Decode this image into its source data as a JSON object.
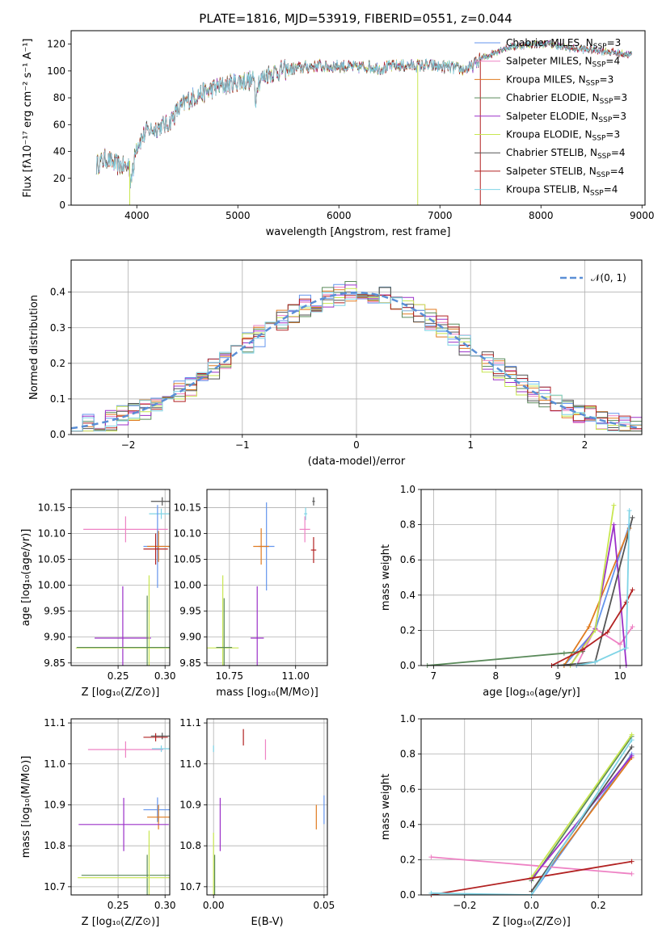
{
  "title": "PLATE=1816, MJD=53919, FIBERID=0551, z=0.044",
  "colors": {
    "Chabrier MILES": "#6495ed",
    "Salpeter MILES": "#ee82c4",
    "Kroupa MILES": "#e07b20",
    "Chabrier ELODIE": "#5a8a5a",
    "Salpeter ELODIE": "#9b30c8",
    "Kroupa ELODIE": "#c8e650",
    "Chabrier STELIB": "#555555",
    "Salpeter STELIB": "#b22222",
    "Kroupa STELIB": "#7fd4e6"
  },
  "legend": [
    {
      "label": "Chabrier MILES, N",
      "sub": "SSP",
      "eq": "=3",
      "key": "Chabrier MILES"
    },
    {
      "label": "Salpeter MILES, N",
      "sub": "SSP",
      "eq": "=4",
      "key": "Salpeter MILES"
    },
    {
      "label": "Kroupa MILES, N",
      "sub": "SSP",
      "eq": "=3",
      "key": "Kroupa MILES"
    },
    {
      "label": "Chabrier ELODIE, N",
      "sub": "SSP",
      "eq": "=3",
      "key": "Chabrier ELODIE"
    },
    {
      "label": "Salpeter ELODIE, N",
      "sub": "SSP",
      "eq": "=3",
      "key": "Salpeter ELODIE"
    },
    {
      "label": "Kroupa ELODIE, N",
      "sub": "SSP",
      "eq": "=3",
      "key": "Kroupa ELODIE"
    },
    {
      "label": "Chabrier STELIB, N",
      "sub": "SSP",
      "eq": "=4",
      "key": "Chabrier STELIB"
    },
    {
      "label": "Salpeter STELIB, N",
      "sub": "SSP",
      "eq": "=4",
      "key": "Salpeter STELIB"
    },
    {
      "label": "Kroupa STELIB, N",
      "sub": "SSP",
      "eq": "=4",
      "key": "Kroupa STELIB"
    }
  ],
  "chart_data": [
    {
      "id": "spectrum",
      "type": "line",
      "xlabel": "wavelength [Angstrom, rest frame]",
      "ylabel": "Flux [fλ10⁻¹⁷ erg cm⁻² s⁻¹ A⁻¹]",
      "xlim": [
        3350,
        9030
      ],
      "ylim": [
        0,
        130
      ],
      "xticks": [
        4000,
        5000,
        6000,
        7000,
        8000,
        9000
      ],
      "yticks": [
        0,
        20,
        40,
        60,
        80,
        100,
        120
      ],
      "continuum": [
        [
          3600,
          30
        ],
        [
          3700,
          35
        ],
        [
          3800,
          30
        ],
        [
          3900,
          28
        ],
        [
          4000,
          45
        ],
        [
          4100,
          55
        ],
        [
          4200,
          58
        ],
        [
          4300,
          60
        ],
        [
          4400,
          70
        ],
        [
          4500,
          78
        ],
        [
          4600,
          82
        ],
        [
          4700,
          85
        ],
        [
          4800,
          88
        ],
        [
          4900,
          90
        ],
        [
          5000,
          92
        ],
        [
          5100,
          93
        ],
        [
          5200,
          92
        ],
        [
          5300,
          98
        ],
        [
          5400,
          100
        ],
        [
          5500,
          101
        ],
        [
          5600,
          102
        ],
        [
          5700,
          103
        ],
        [
          5800,
          104
        ],
        [
          5900,
          103
        ],
        [
          6000,
          104
        ],
        [
          6100,
          103
        ],
        [
          6200,
          103
        ],
        [
          6300,
          103
        ],
        [
          6400,
          102
        ],
        [
          6500,
          103
        ],
        [
          6600,
          104
        ],
        [
          6700,
          104
        ],
        [
          6800,
          104
        ],
        [
          6900,
          104
        ],
        [
          7000,
          103
        ],
        [
          7100,
          103
        ],
        [
          7200,
          101
        ],
        [
          7300,
          102
        ],
        [
          7400,
          109
        ],
        [
          7500,
          112
        ],
        [
          7600,
          116
        ],
        [
          7700,
          118
        ],
        [
          7800,
          119
        ],
        [
          7900,
          120
        ],
        [
          8000,
          120
        ],
        [
          8100,
          120
        ],
        [
          8200,
          118
        ],
        [
          8300,
          117
        ],
        [
          8400,
          116
        ],
        [
          8500,
          116
        ],
        [
          8600,
          115
        ],
        [
          8700,
          114
        ],
        [
          8800,
          113
        ],
        [
          8900,
          112
        ]
      ],
      "features": [
        {
          "series": "Kroupa ELODIE",
          "x": 3930,
          "ymin": 0
        },
        {
          "series": "Kroupa ELODIE",
          "x": 6780,
          "ymin": 0
        },
        {
          "series": "Salpeter STELIB",
          "x": 7400,
          "ymin": 0
        }
      ]
    },
    {
      "id": "residuals",
      "type": "step",
      "xlabel": "(data-model)/error",
      "ylabel": "Normed distribution",
      "xlim": [
        -2.5,
        2.5
      ],
      "ylim": [
        0,
        0.49
      ],
      "xticks": [
        -2,
        -1,
        0,
        1,
        2
      ],
      "yticks": [
        0.0,
        0.1,
        0.2,
        0.3,
        0.4
      ],
      "legend_label": "𝒩(0, 1)",
      "gaussian": {
        "mu": 0,
        "sigma": 1
      },
      "bin_width": 0.1
    },
    {
      "id": "age-Z",
      "type": "errorbar",
      "xlabel": "Z [log₁₀(Z/Z⊙)]",
      "ylabel": "age  [log₁₀(age/yr)]",
      "xlim": [
        0.2,
        0.305
      ],
      "ylim": [
        9.845,
        10.185
      ],
      "xticks": [
        0.25,
        0.3
      ],
      "yticks": [
        9.85,
        9.9,
        9.95,
        10.0,
        10.05,
        10.1,
        10.15
      ],
      "points": [
        {
          "series": "Chabrier STELIB",
          "x": 0.297,
          "y": 10.162,
          "xerr": 0.012,
          "yerr": 0.008
        },
        {
          "series": "Kroupa STELIB",
          "x": 0.296,
          "y": 10.138,
          "xerr": 0.013,
          "yerr": 0.01
        },
        {
          "series": "Salpeter MILES",
          "x": 0.258,
          "y": 10.108,
          "xerr": 0.045,
          "yerr": 0.025
        },
        {
          "series": "Chabrier MILES",
          "x": 0.292,
          "y": 10.075,
          "xerr": 0.015,
          "yerr": 0.08
        },
        {
          "series": "Kroupa MILES",
          "x": 0.293,
          "y": 10.075,
          "xerr": 0.012,
          "yerr": 0.03
        },
        {
          "series": "Salpeter STELIB",
          "x": 0.29,
          "y": 10.07,
          "xerr": 0.013,
          "yerr": 0.03
        },
        {
          "series": "Salpeter ELODIE",
          "x": 0.255,
          "y": 9.898,
          "xerr": 0.03,
          "yerr": 0.1
        },
        {
          "series": "Kroupa ELODIE",
          "x": 0.283,
          "y": 9.879,
          "xerr": 0.078,
          "yerr": 0.14
        },
        {
          "series": "Chabrier ELODIE",
          "x": 0.281,
          "y": 9.88,
          "xerr": 0.075,
          "yerr": 0.1
        }
      ]
    },
    {
      "id": "age-mass",
      "type": "errorbar",
      "xlabel": "mass [log₁₀(M/M⊙)]",
      "ylabel": "",
      "xlim": [
        10.665,
        11.12
      ],
      "ylim": [
        9.845,
        10.185
      ],
      "xticks": [
        10.75,
        11.0
      ],
      "yticks": [
        9.85,
        9.9,
        9.95,
        10.0,
        10.05,
        10.1,
        10.15
      ],
      "points": [
        {
          "series": "Chabrier STELIB",
          "x": 11.068,
          "y": 10.162,
          "xerr": 0.005,
          "yerr": 0.008
        },
        {
          "series": "Kroupa STELIB",
          "x": 11.038,
          "y": 10.138,
          "xerr": 0.006,
          "yerr": 0.012
        },
        {
          "series": "Salpeter MILES",
          "x": 11.035,
          "y": 10.108,
          "xerr": 0.02,
          "yerr": 0.025
        },
        {
          "series": "Salpeter STELIB",
          "x": 11.068,
          "y": 10.068,
          "xerr": 0.01,
          "yerr": 0.025
        },
        {
          "series": "Chabrier MILES",
          "x": 10.89,
          "y": 10.075,
          "xerr": 0.03,
          "yerr": 0.085
        },
        {
          "series": "Kroupa MILES",
          "x": 10.87,
          "y": 10.075,
          "xerr": 0.03,
          "yerr": 0.035
        },
        {
          "series": "Salpeter ELODIE",
          "x": 10.855,
          "y": 9.898,
          "xerr": 0.025,
          "yerr": 0.1
        },
        {
          "series": "Kroupa ELODIE",
          "x": 10.725,
          "y": 9.879,
          "xerr": 0.06,
          "yerr": 0.14
        },
        {
          "series": "Chabrier ELODIE",
          "x": 10.73,
          "y": 9.88,
          "xerr": 0.03,
          "yerr": 0.095
        }
      ]
    },
    {
      "id": "mw-age",
      "type": "line",
      "xlabel": "age  [log₁₀(age/yr)]",
      "ylabel": "mass weight",
      "xlim": [
        6.8,
        10.35
      ],
      "ylim": [
        0,
        1.0
      ],
      "xticks": [
        7,
        8,
        9,
        10
      ],
      "yticks": [
        0.0,
        0.2,
        0.4,
        0.6,
        0.8,
        1.0
      ],
      "series": [
        {
          "name": "Chabrier MILES",
          "x": [
            9.1,
            9.6,
            10.15
          ],
          "y": [
            0.0,
            0.2,
            0.8
          ]
        },
        {
          "name": "Salpeter MILES",
          "x": [
            9.3,
            9.6,
            10.0,
            10.2
          ],
          "y": [
            0.0,
            0.21,
            0.12,
            0.22
          ]
        },
        {
          "name": "Kroupa MILES",
          "x": [
            9.1,
            9.5,
            10.15
          ],
          "y": [
            0.0,
            0.22,
            0.78
          ]
        },
        {
          "name": "Chabrier ELODIE",
          "x": [
            6.9,
            9.1,
            9.4
          ],
          "y": [
            0.0,
            0.07,
            0.08
          ]
        },
        {
          "name": "Salpeter ELODIE",
          "x": [
            9.2,
            9.6,
            9.9,
            10.1
          ],
          "y": [
            0.0,
            0.21,
            0.8,
            0.0
          ]
        },
        {
          "name": "Kroupa ELODIE",
          "x": [
            9.2,
            9.6,
            9.9
          ],
          "y": [
            0.0,
            0.2,
            0.91
          ]
        },
        {
          "name": "Chabrier STELIB",
          "x": [
            9.0,
            9.6,
            10.2
          ],
          "y": [
            0.0,
            0.02,
            0.84
          ]
        },
        {
          "name": "Salpeter STELIB",
          "x": [
            8.9,
            9.4,
            9.8,
            10.1,
            10.2
          ],
          "y": [
            0.0,
            0.09,
            0.19,
            0.36,
            0.43
          ]
        },
        {
          "name": "Kroupa STELIB",
          "x": [
            9.3,
            9.6,
            10.1,
            10.15
          ],
          "y": [
            0.0,
            0.02,
            0.1,
            0.88
          ]
        }
      ]
    },
    {
      "id": "mass-Z",
      "type": "errorbar",
      "xlabel": "Z [log₁₀(Z/Z⊙)]",
      "ylabel": "mass [log₁₀(M/M⊙)]",
      "xlim": [
        0.2,
        0.305
      ],
      "ylim": [
        10.68,
        11.11
      ],
      "xticks": [
        0.25,
        0.3
      ],
      "yticks": [
        10.7,
        10.8,
        10.9,
        11.0,
        11.1
      ],
      "points": [
        {
          "series": "Chabrier STELIB",
          "x": 0.297,
          "y": 11.068,
          "xerr": 0.012,
          "yerr": 0.008
        },
        {
          "series": "Salpeter STELIB",
          "x": 0.29,
          "y": 11.065,
          "xerr": 0.013,
          "yerr": 0.01
        },
        {
          "series": "Salpeter MILES",
          "x": 0.258,
          "y": 11.035,
          "xerr": 0.04,
          "yerr": 0.02
        },
        {
          "series": "Kroupa STELIB",
          "x": 0.296,
          "y": 11.037,
          "xerr": 0.01,
          "yerr": 0.008
        },
        {
          "series": "Chabrier MILES",
          "x": 0.292,
          "y": 10.888,
          "xerr": 0.015,
          "yerr": 0.03
        },
        {
          "series": "Kroupa MILES",
          "x": 0.293,
          "y": 10.87,
          "xerr": 0.012,
          "yerr": 0.03
        },
        {
          "series": "Salpeter ELODIE",
          "x": 0.256,
          "y": 10.852,
          "xerr": 0.048,
          "yerr": 0.065
        },
        {
          "series": "Chabrier ELODIE",
          "x": 0.281,
          "y": 10.728,
          "xerr": 0.07,
          "yerr": 0.05
        },
        {
          "series": "Kroupa ELODIE",
          "x": 0.283,
          "y": 10.722,
          "xerr": 0.076,
          "yerr": 0.115
        }
      ]
    },
    {
      "id": "mass-ebv",
      "type": "errorbar",
      "xlabel": "E(B-V)",
      "ylabel": "",
      "xlim": [
        -0.003,
        0.0515
      ],
      "ylim": [
        10.68,
        11.11
      ],
      "xticks": [
        0.0,
        0.05
      ],
      "yticks": [
        10.7,
        10.8,
        10.9,
        11.0,
        11.1
      ],
      "points": [
        {
          "series": "Salpeter STELIB",
          "x": 0.0135,
          "y": 11.065,
          "xerr": 0,
          "yerr": 0.02
        },
        {
          "series": "Salpeter MILES",
          "x": 0.0235,
          "y": 11.035,
          "xerr": 0,
          "yerr": 0.025
        },
        {
          "series": "Kroupa STELIB",
          "x": 0.0,
          "y": 11.037,
          "xerr": 0,
          "yerr": 0.008
        },
        {
          "series": "Salpeter ELODIE",
          "x": 0.003,
          "y": 10.852,
          "xerr": 0,
          "yerr": 0.065
        },
        {
          "series": "Chabrier MILES",
          "x": 0.05,
          "y": 10.888,
          "xerr": 0,
          "yerr": 0.035
        },
        {
          "series": "Kroupa MILES",
          "x": 0.0465,
          "y": 10.87,
          "xerr": 0,
          "yerr": 0.03
        },
        {
          "series": "Kroupa ELODIE",
          "x": 0.0,
          "y": 10.722,
          "xerr": 0,
          "yerr": 0.11
        },
        {
          "series": "Chabrier ELODIE",
          "x": 0.0005,
          "y": 10.728,
          "xerr": 0,
          "yerr": 0.05
        }
      ]
    },
    {
      "id": "mw-Z",
      "type": "line",
      "xlabel": "Z [log₁₀(Z/Z⊙)]",
      "ylabel": "mass weight",
      "xlim": [
        -0.33,
        0.33
      ],
      "ylim": [
        0,
        1.0
      ],
      "xticks": [
        -0.2,
        0.0,
        0.2
      ],
      "yticks": [
        0.0,
        0.2,
        0.4,
        0.6,
        0.8,
        1.0
      ],
      "series": [
        {
          "name": "Chabrier MILES",
          "x": [
            0.0,
            0.3
          ],
          "y": [
            0.0,
            0.8
          ]
        },
        {
          "name": "Salpeter MILES",
          "x": [
            -0.3,
            0.3
          ],
          "y": [
            0.215,
            0.12
          ]
        },
        {
          "name": "Kroupa MILES",
          "x": [
            0.0,
            0.3
          ],
          "y": [
            0.02,
            0.78
          ]
        },
        {
          "name": "Chabrier ELODIE",
          "x": [
            0.0,
            0.3
          ],
          "y": [
            0.08,
            0.9
          ]
        },
        {
          "name": "Salpeter ELODIE",
          "x": [
            0.0,
            0.3
          ],
          "y": [
            0.09,
            0.79
          ]
        },
        {
          "name": "Kroupa ELODIE",
          "x": [
            0.0,
            0.3
          ],
          "y": [
            0.1,
            0.91
          ]
        },
        {
          "name": "Chabrier STELIB",
          "x": [
            0.0,
            0.3
          ],
          "y": [
            0.02,
            0.84
          ]
        },
        {
          "name": "Salpeter STELIB",
          "x": [
            -0.3,
            0.3
          ],
          "y": [
            0.0,
            0.19
          ]
        },
        {
          "name": "Kroupa STELIB",
          "x": [
            -0.3,
            0.0,
            0.3
          ],
          "y": [
            0.01,
            0.0,
            0.88
          ]
        }
      ]
    }
  ]
}
